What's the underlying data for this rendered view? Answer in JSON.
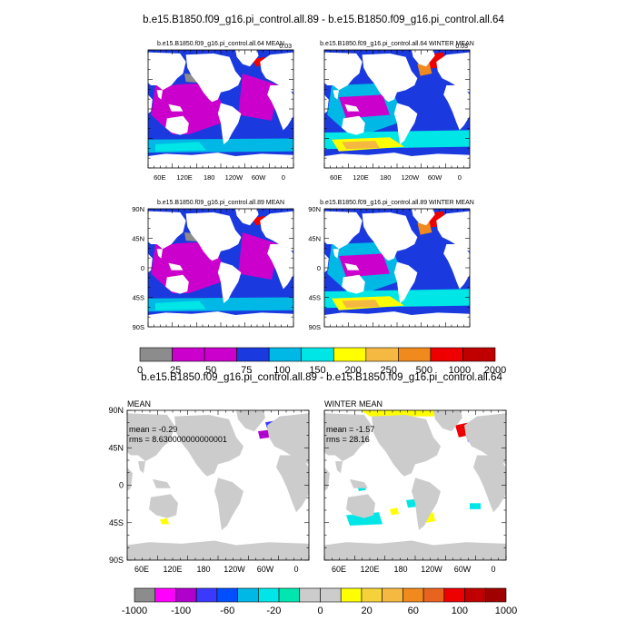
{
  "chart_data": {
    "type": "heatmap",
    "title": "b.e15.B1850.f09_g16.pi_control.all.89 - b.e15.B1850.f09_g16.pi_control.all.64",
    "diff_title": "b.e15.B1850.f09_g16.pi_control.all.89 - b.e15.B1850.f09_g16.pi_control.all.64",
    "panels": [
      {
        "title": "b.e15.B1850.f09_g16.pi_control.all.64 MEAN",
        "corner": "0.03"
      },
      {
        "title": "b.e15.B1850.f09_g16.pi_control.all.64 WINTER MEAN",
        "corner": "0.03"
      },
      {
        "title": "b.e15.B1850.f09_g16.pi_control.all.89 MEAN",
        "corner": ""
      },
      {
        "title": "b.e15.B1850.f09_g16.pi_control.all.89 WINTER MEAN",
        "corner": ""
      }
    ],
    "diff_panels": [
      {
        "title": "MEAN",
        "mean": "mean = -0.29",
        "rms": "rms = 8.630000000000001"
      },
      {
        "title": "WINTER MEAN",
        "mean": "mean = -1.57",
        "rms": "rms = 28.16"
      }
    ],
    "lon_ticks": [
      "60E",
      "120E",
      "180",
      "120W",
      "60W",
      "0"
    ],
    "lat_ticks": [
      "90N",
      "45N",
      "0",
      "45S",
      "90S"
    ],
    "top_colorbar": {
      "labels": [
        "0",
        "25",
        "50",
        "75",
        "100",
        "150",
        "200",
        "250",
        "500",
        "1000",
        "2000"
      ],
      "colors": [
        "#8c8c8c",
        "#cc00cc",
        "#cc00cc",
        "#1a3adf",
        "#00b8e6",
        "#00e6e6",
        "#ffff00",
        "#f5b841",
        "#f08a1e",
        "#ee0000",
        "#c00000"
      ]
    },
    "bottom_colorbar": {
      "labels": [
        "-1000",
        "-100",
        "-60",
        "-20",
        "0",
        "20",
        "60",
        "100",
        "1000"
      ],
      "colors": [
        "#8c8c8c",
        "#ff00ff",
        "#b000cc",
        "#3a3aff",
        "#0050ff",
        "#00b8e6",
        "#00e6e6",
        "#00e6b0",
        "#cccccc",
        "#cccccc",
        "#ffff00",
        "#f5d23c",
        "#f5b841",
        "#f08a1e",
        "#e8641e",
        "#ee0000",
        "#c00000",
        "#a00000"
      ]
    }
  }
}
